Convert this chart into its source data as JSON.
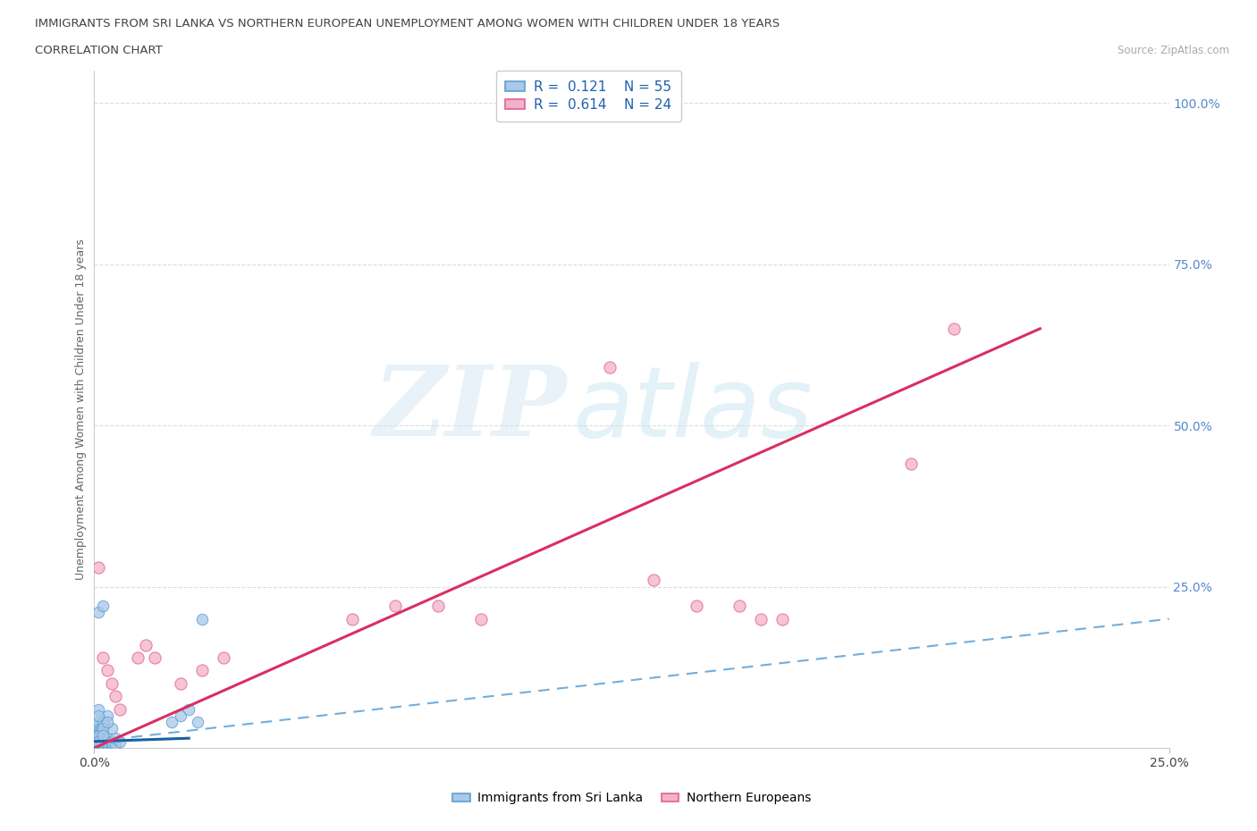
{
  "title_line1": "IMMIGRANTS FROM SRI LANKA VS NORTHERN EUROPEAN UNEMPLOYMENT AMONG WOMEN WITH CHILDREN UNDER 18 YEARS",
  "title_line2": "CORRELATION CHART",
  "source_text": "Source: ZipAtlas.com",
  "ylabel": "Unemployment Among Women with Children Under 18 years",
  "xlim": [
    0.0,
    0.25
  ],
  "ylim": [
    0.0,
    1.05
  ],
  "ytick_values": [
    0.25,
    0.5,
    0.75,
    1.0
  ],
  "ytick_labels": [
    "25.0%",
    "50.0%",
    "75.0%",
    "100.0%"
  ],
  "xtick_values": [
    0.0,
    0.25
  ],
  "xtick_labels": [
    "0.0%",
    "25.0%"
  ],
  "color_blue_fill": "#aac8e8",
  "color_blue_edge": "#5a9fd4",
  "color_pink_fill": "#f4b0c8",
  "color_pink_edge": "#e06090",
  "color_blue_line": "#1a60a0",
  "color_pink_line": "#d83060",
  "color_dashed": "#5a9fd4",
  "legend_r1": "0.121",
  "legend_n1": "55",
  "legend_r2": "0.614",
  "legend_n2": "24",
  "blue_line_x": [
    0.0,
    0.022
  ],
  "blue_line_y": [
    0.01,
    0.015
  ],
  "pink_line_x": [
    0.0,
    0.22
  ],
  "pink_line_y": [
    0.0,
    0.65
  ],
  "dashed_line_x": [
    0.0,
    0.25
  ],
  "dashed_line_y": [
    0.01,
    0.2
  ],
  "sri_lanka_x": [
    0.0005,
    0.0005,
    0.0005,
    0.0005,
    0.0005,
    0.0005,
    0.0005,
    0.0005,
    0.0005,
    0.0005,
    0.001,
    0.001,
    0.001,
    0.001,
    0.001,
    0.001,
    0.001,
    0.001,
    0.001,
    0.001,
    0.0015,
    0.0015,
    0.0015,
    0.0015,
    0.0015,
    0.002,
    0.002,
    0.002,
    0.002,
    0.002,
    0.003,
    0.003,
    0.003,
    0.004,
    0.004,
    0.005,
    0.005,
    0.006,
    0.001,
    0.002,
    0.003,
    0.004,
    0.001,
    0.002,
    0.001,
    0.002,
    0.003,
    0.001,
    0.002,
    0.001,
    0.018,
    0.02,
    0.022,
    0.024,
    0.025
  ],
  "sri_lanka_y": [
    0.005,
    0.01,
    0.015,
    0.02,
    0.025,
    0.005,
    0.01,
    0.015,
    0.02,
    0.025,
    0.005,
    0.01,
    0.015,
    0.02,
    0.025,
    0.03,
    0.035,
    0.04,
    0.005,
    0.01,
    0.005,
    0.01,
    0.015,
    0.02,
    0.03,
    0.005,
    0.01,
    0.015,
    0.02,
    0.03,
    0.005,
    0.01,
    0.015,
    0.005,
    0.01,
    0.005,
    0.015,
    0.01,
    0.21,
    0.22,
    0.05,
    0.03,
    0.06,
    0.04,
    0.02,
    0.03,
    0.04,
    0.01,
    0.02,
    0.05,
    0.04,
    0.05,
    0.06,
    0.04,
    0.2
  ],
  "northern_eu_x": [
    0.001,
    0.002,
    0.003,
    0.004,
    0.005,
    0.006,
    0.01,
    0.012,
    0.014,
    0.02,
    0.025,
    0.03,
    0.08,
    0.09,
    0.12,
    0.13,
    0.14,
    0.15,
    0.155,
    0.16,
    0.19,
    0.2,
    0.06,
    0.07
  ],
  "northern_eu_y": [
    0.28,
    0.14,
    0.12,
    0.1,
    0.08,
    0.06,
    0.14,
    0.16,
    0.14,
    0.1,
    0.12,
    0.14,
    0.22,
    0.2,
    0.59,
    0.26,
    0.22,
    0.22,
    0.2,
    0.2,
    0.44,
    0.65,
    0.2,
    0.22
  ]
}
